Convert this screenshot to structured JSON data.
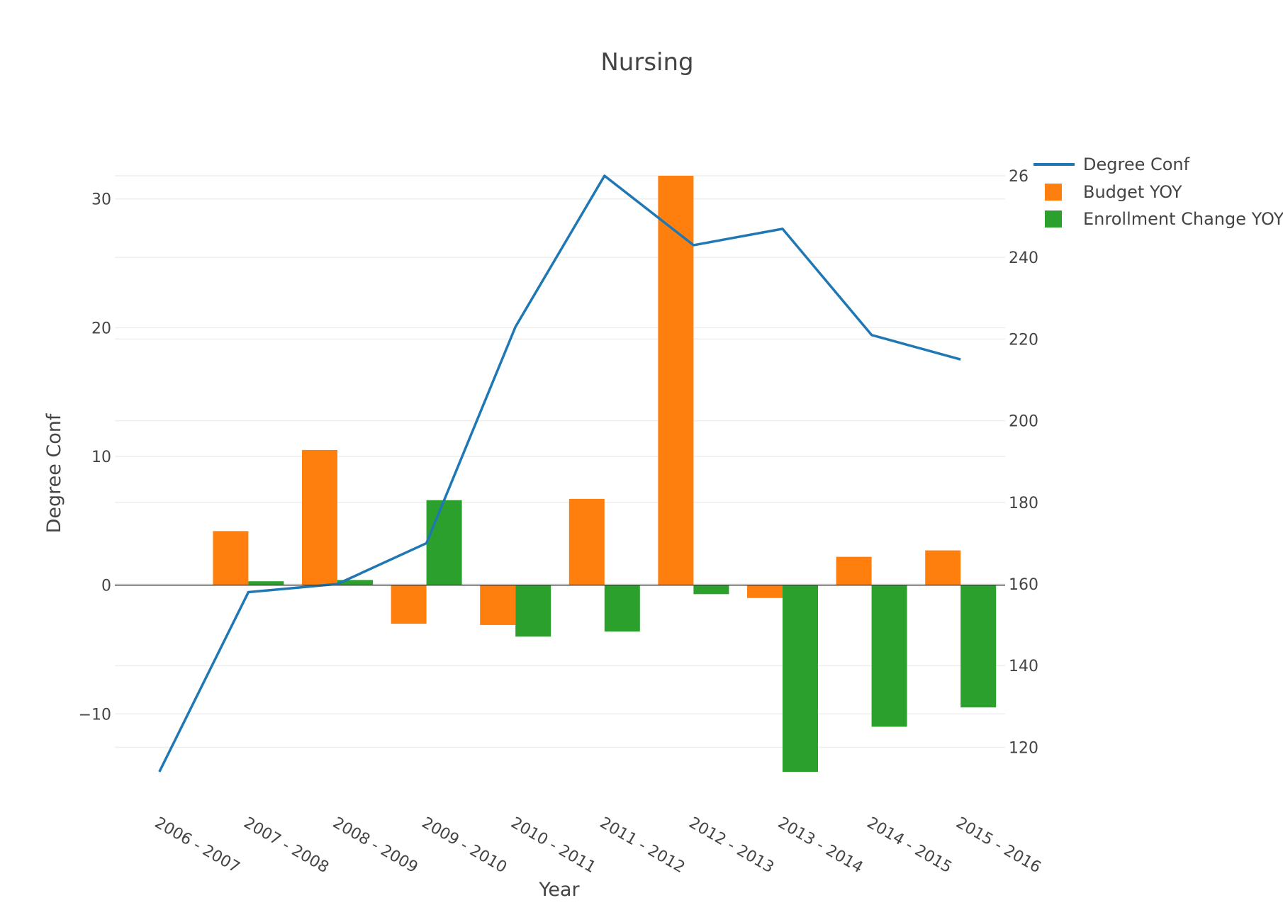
{
  "chart_data": {
    "type": "bar",
    "title": "Nursing",
    "xlabel": "Year",
    "ylabel": "Degree Conf",
    "categories": [
      "2006 - 2007",
      "2007 - 2008",
      "2008 - 2009",
      "2009 - 2010",
      "2010 - 2011",
      "2011 - 2012",
      "2012 - 2013",
      "2013 - 2014",
      "2014 - 2015",
      "2015 - 2016"
    ],
    "ylim": [
      -14.5,
      31.8
    ],
    "y_ticks": [
      -10,
      0,
      10,
      20,
      30
    ],
    "y2lim": [
      114,
      260
    ],
    "y2_ticks": [
      120,
      140,
      160,
      180,
      200,
      220,
      240
    ],
    "y2_tick_partial": "26",
    "grid": true,
    "legend_position": "top-right",
    "series": [
      {
        "name": "Degree Conf",
        "type": "line",
        "axis": "y2",
        "color": "#1f77b4",
        "values": [
          114,
          158,
          160,
          170,
          223,
          260,
          243,
          247,
          221,
          215
        ]
      },
      {
        "name": "Budget YOY",
        "type": "bar",
        "axis": "y",
        "color": "#ff7f0e",
        "values": [
          null,
          4.2,
          10.5,
          -3.0,
          -3.1,
          6.7,
          31.8,
          -1.0,
          2.2,
          2.7
        ]
      },
      {
        "name": "Enrollment Change YOY",
        "type": "bar",
        "axis": "y",
        "color": "#2ca02c",
        "values": [
          null,
          0.3,
          0.4,
          6.6,
          -4.0,
          -3.6,
          -0.7,
          -14.5,
          -11.0,
          -9.5
        ]
      }
    ]
  }
}
